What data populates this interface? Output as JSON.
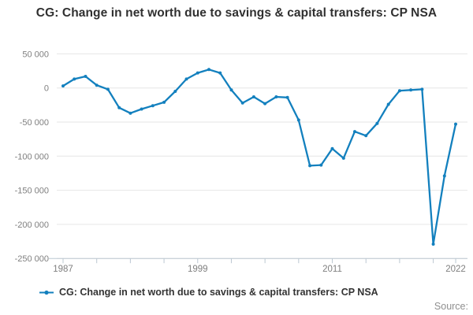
{
  "title": "CG: Change in net worth due to savings & capital transfers: CP NSA",
  "legend": {
    "symbol": "line-with-dot",
    "label": "CG: Change in net worth due to savings & capital transfers: CP NSA"
  },
  "footer": {
    "source_label": "Source:"
  },
  "colors": {
    "line": "#1380be",
    "grid": "#e6e6e6",
    "axis": "#bcc8d2",
    "tick_text": "#7f7f7f",
    "title_text": "#303030"
  },
  "chart_data": {
    "type": "line",
    "title": "CG: Change in net worth due to savings & capital transfers: CP NSA",
    "xlabel": "",
    "ylabel": "",
    "ylim": [
      -250000,
      50000
    ],
    "xlim": [
      1987,
      2022
    ],
    "grid": "horizontal",
    "legend_position": "bottom",
    "series": [
      {
        "name": "CG: Change in net worth due to savings & capital transfers: CP NSA",
        "x": [
          1987,
          1988,
          1989,
          1990,
          1991,
          1992,
          1993,
          1994,
          1995,
          1996,
          1997,
          1998,
          1999,
          2000,
          2001,
          2002,
          2003,
          2004,
          2005,
          2006,
          2007,
          2008,
          2009,
          2010,
          2011,
          2012,
          2013,
          2014,
          2015,
          2016,
          2017,
          2018,
          2019,
          2020,
          2021,
          2022
        ],
        "values": [
          3000,
          13000,
          17000,
          4000,
          -2000,
          -29000,
          -37000,
          -31000,
          -26000,
          -21000,
          -5000,
          13000,
          22000,
          27000,
          22000,
          -3000,
          -22000,
          -13000,
          -23000,
          -13000,
          -14000,
          -47000,
          -114000,
          -113000,
          -89000,
          -103000,
          -64000,
          -70000,
          -52000,
          -24000,
          -4000,
          -3000,
          -2000,
          -229000,
          -129000,
          -53000
        ]
      }
    ],
    "yticks": [
      {
        "value": 50000,
        "label": "50 000"
      },
      {
        "value": 0,
        "label": "0"
      },
      {
        "value": -50000,
        "label": "-50 000"
      },
      {
        "value": -100000,
        "label": "-100 000"
      },
      {
        "value": -150000,
        "label": "-150 000"
      },
      {
        "value": -200000,
        "label": "-200 000"
      },
      {
        "value": -250000,
        "label": "-250 000"
      }
    ],
    "xticks_minor_years": [
      1987,
      1990,
      1993,
      1996,
      1999,
      2002,
      2005,
      2008,
      2011,
      2014,
      2017,
      2020,
      2022
    ],
    "xtick_labels": [
      {
        "year": 1987,
        "label": "1987"
      },
      {
        "year": 1999,
        "label": "1999"
      },
      {
        "year": 2011,
        "label": "2011"
      },
      {
        "year": 2022,
        "label": "2022"
      }
    ]
  }
}
